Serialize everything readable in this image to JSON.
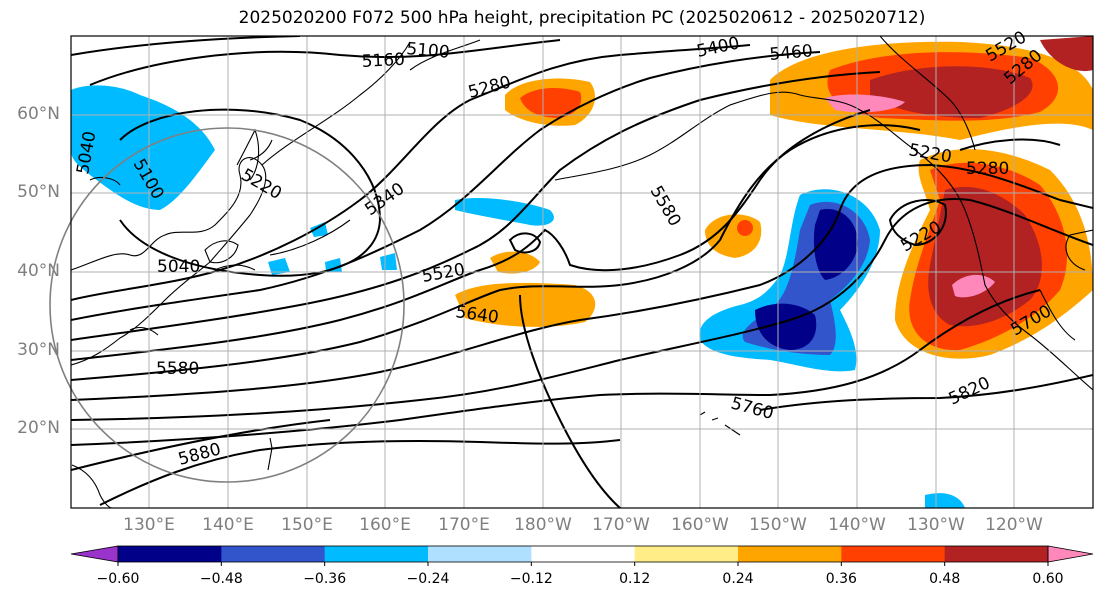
{
  "title": "2025020200 F072 500 hPa height, precipitation PC (2025020612 - 2025020712)",
  "latitude_labels": [
    "60°N",
    "50°N",
    "40°N",
    "30°N",
    "20°N"
  ],
  "longitude_labels": [
    "130°E",
    "140°E",
    "150°E",
    "160°E",
    "170°E",
    "180°W",
    "170°W",
    "160°W",
    "150°W",
    "140°W",
    "130°W",
    "120°W"
  ],
  "contour_labels": [
    "5100",
    "5160",
    "5280",
    "5400",
    "5460",
    "5520",
    "5580",
    "5040",
    "5100",
    "5220",
    "5340",
    "5220",
    "5280",
    "5040",
    "5520",
    "5640",
    "5580",
    "5760",
    "5880",
    "5820",
    "5700",
    "5220",
    "5280"
  ],
  "colorbar": {
    "colors": [
      "#9933cc",
      "#000088",
      "#3355cc",
      "#00bbff",
      "#b0e0ff",
      "#ffffff",
      "#ffee88",
      "#ffa500",
      "#ff4000",
      "#b22222",
      "#ff88bb"
    ],
    "tick_labels": [
      "−0.60",
      "−0.48",
      "−0.36",
      "−0.24",
      "−0.12",
      "0.12",
      "0.24",
      "0.36",
      "0.48",
      "0.60"
    ]
  }
}
